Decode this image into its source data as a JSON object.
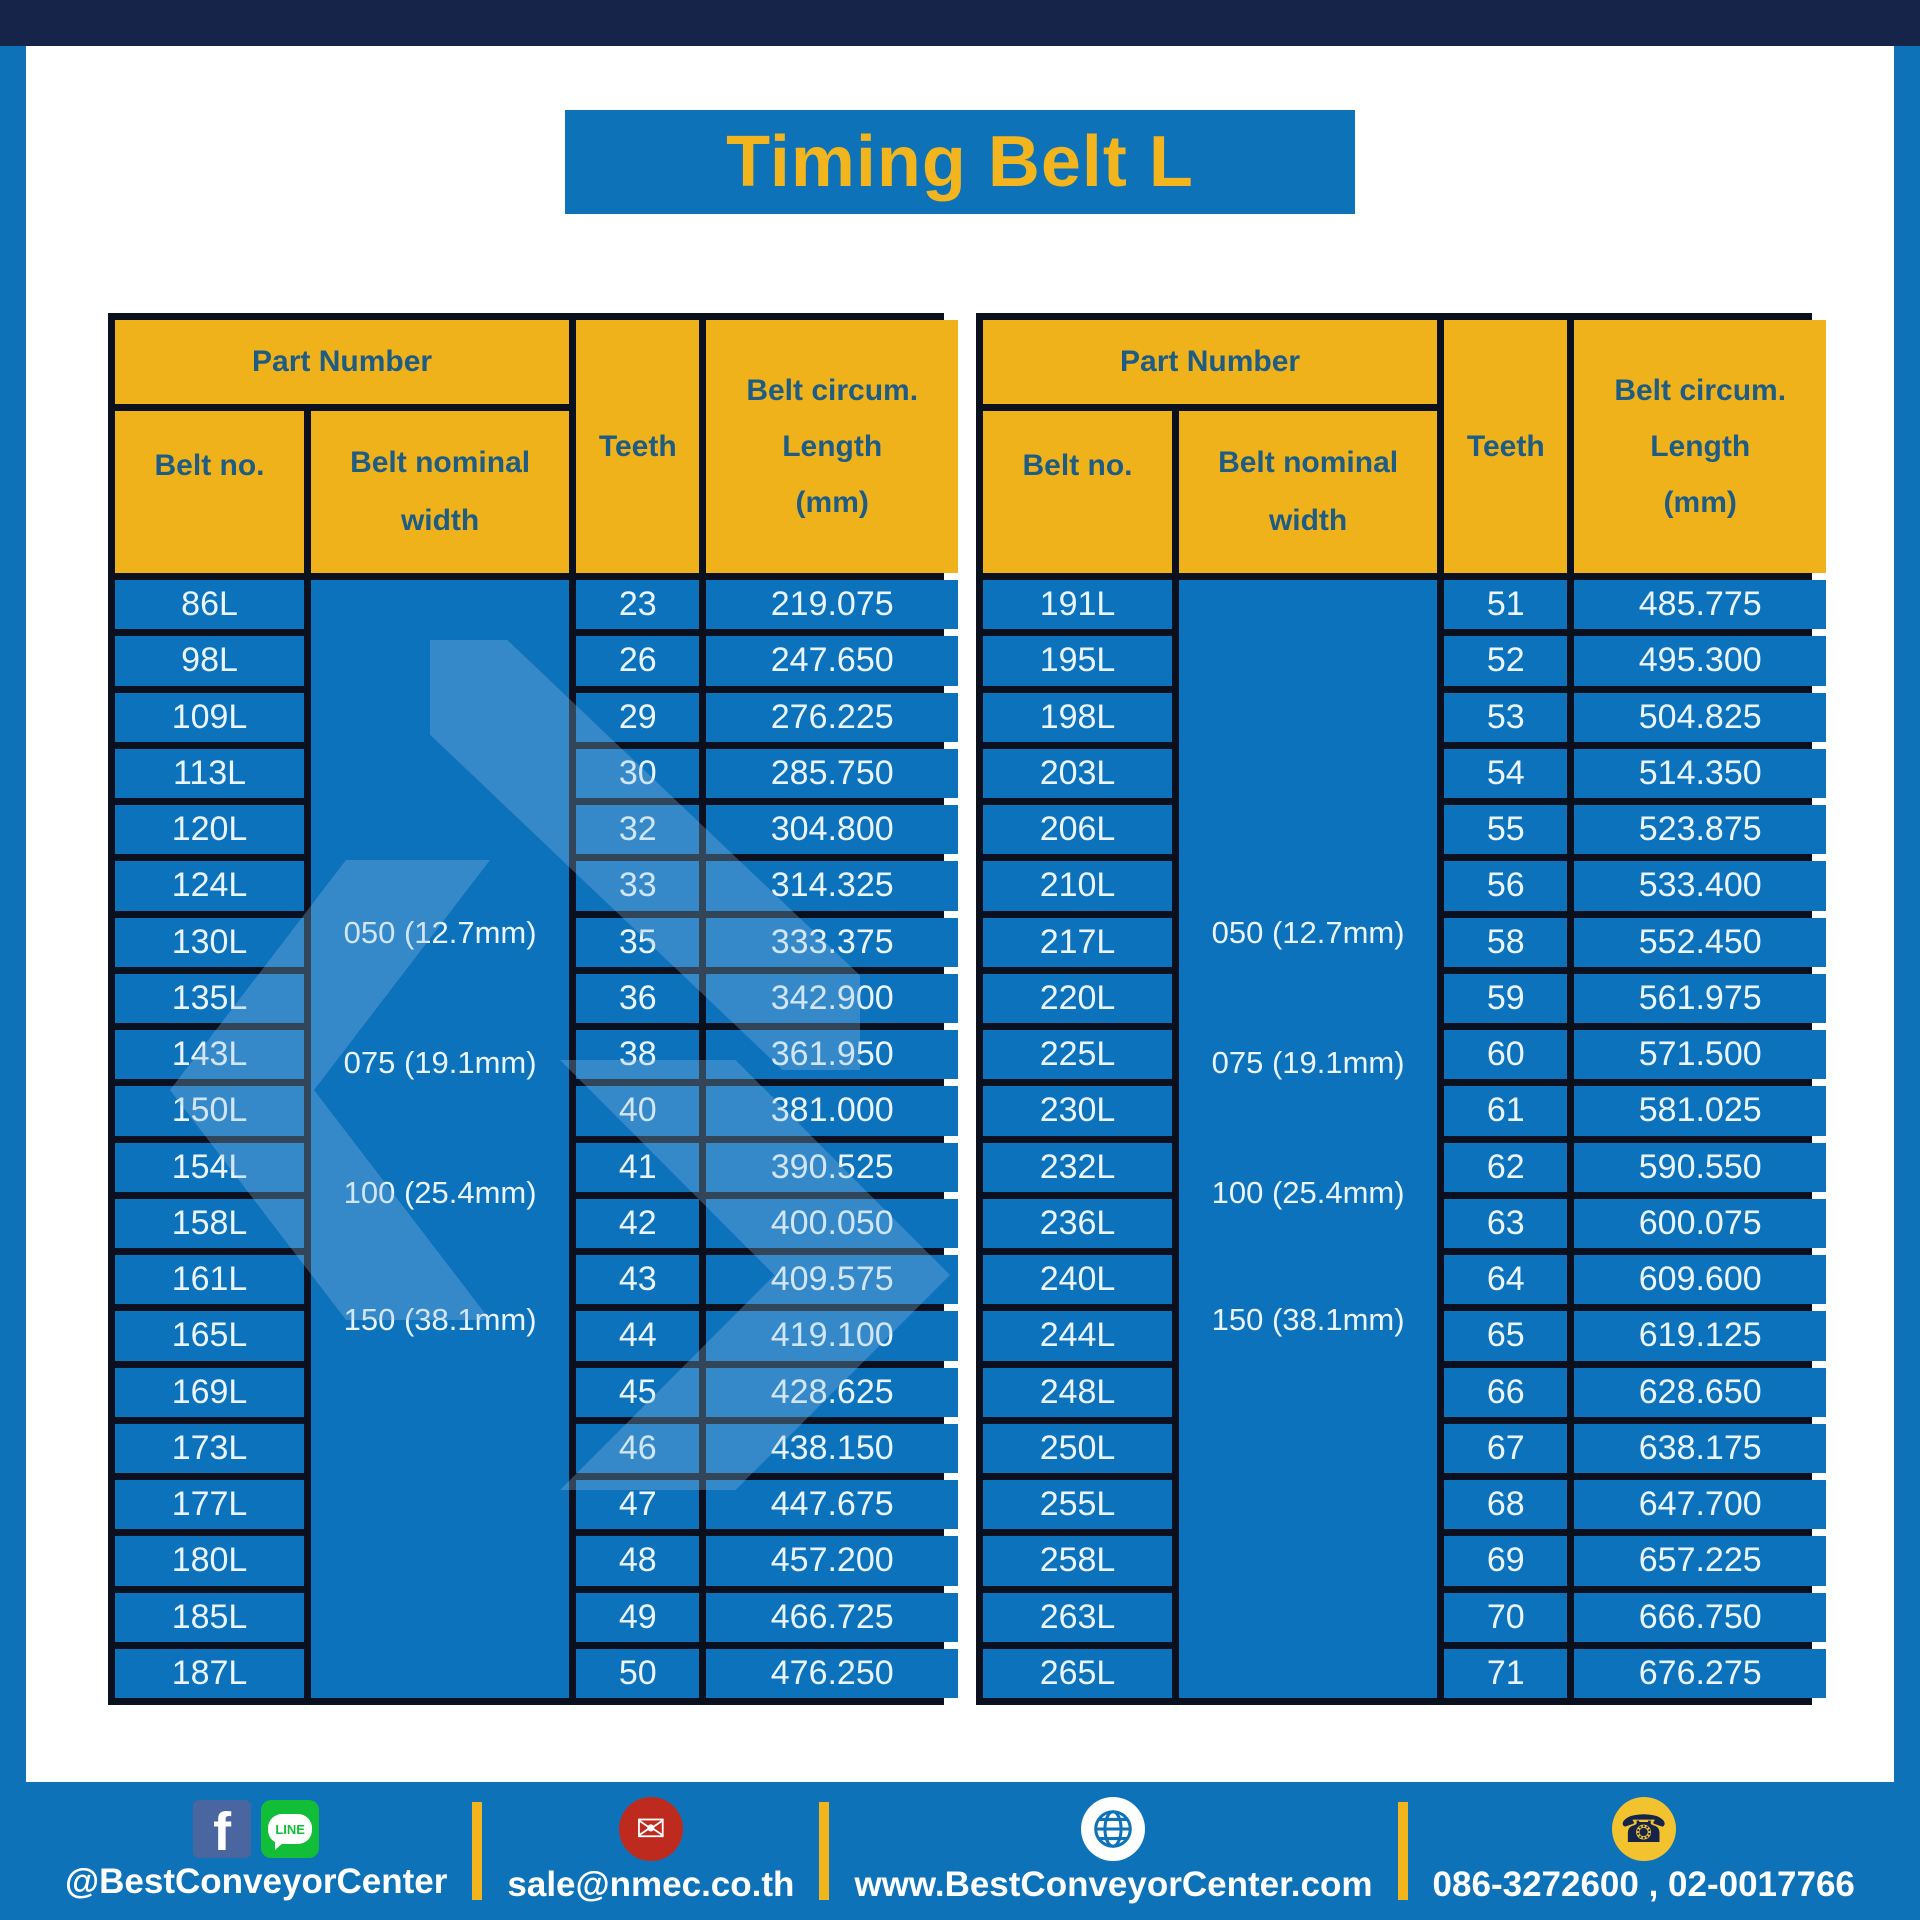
{
  "title": "Timing Belt L",
  "table_header": {
    "part_number": "Part Number",
    "belt_no": "Belt no.",
    "belt_nominal_line1": "Belt nominal",
    "belt_nominal_line2": "width",
    "teeth": "Teeth",
    "belt_circum_line1": "Belt circum.",
    "belt_circum_line2": "Length",
    "belt_circum_line3": "(mm)"
  },
  "tables": [
    {
      "widths": [
        "050 (12.7mm)",
        "075 (19.1mm)",
        "100 (25.4mm)",
        "150 (38.1mm)"
      ],
      "rows": [
        {
          "belt": "86L",
          "teeth": 23,
          "length": "219.075"
        },
        {
          "belt": "98L",
          "teeth": 26,
          "length": "247.650"
        },
        {
          "belt": "109L",
          "teeth": 29,
          "length": "276.225"
        },
        {
          "belt": "113L",
          "teeth": 30,
          "length": "285.750"
        },
        {
          "belt": "120L",
          "teeth": 32,
          "length": "304.800"
        },
        {
          "belt": "124L",
          "teeth": 33,
          "length": "314.325"
        },
        {
          "belt": "130L",
          "teeth": 35,
          "length": "333.375"
        },
        {
          "belt": "135L",
          "teeth": 36,
          "length": "342.900"
        },
        {
          "belt": "143L",
          "teeth": 38,
          "length": "361.950"
        },
        {
          "belt": "150L",
          "teeth": 40,
          "length": "381.000"
        },
        {
          "belt": "154L",
          "teeth": 41,
          "length": "390.525"
        },
        {
          "belt": "158L",
          "teeth": 42,
          "length": "400.050"
        },
        {
          "belt": "161L",
          "teeth": 43,
          "length": "409.575"
        },
        {
          "belt": "165L",
          "teeth": 44,
          "length": "419.100"
        },
        {
          "belt": "169L",
          "teeth": 45,
          "length": "428.625"
        },
        {
          "belt": "173L",
          "teeth": 46,
          "length": "438.150"
        },
        {
          "belt": "177L",
          "teeth": 47,
          "length": "447.675"
        },
        {
          "belt": "180L",
          "teeth": 48,
          "length": "457.200"
        },
        {
          "belt": "185L",
          "teeth": 49,
          "length": "466.725"
        },
        {
          "belt": "187L",
          "teeth": 50,
          "length": "476.250"
        }
      ]
    },
    {
      "widths": [
        "050 (12.7mm)",
        "075 (19.1mm)",
        "100 (25.4mm)",
        "150 (38.1mm)"
      ],
      "rows": [
        {
          "belt": "191L",
          "teeth": 51,
          "length": "485.775"
        },
        {
          "belt": "195L",
          "teeth": 52,
          "length": "495.300"
        },
        {
          "belt": "198L",
          "teeth": 53,
          "length": "504.825"
        },
        {
          "belt": "203L",
          "teeth": 54,
          "length": "514.350"
        },
        {
          "belt": "206L",
          "teeth": 55,
          "length": "523.875"
        },
        {
          "belt": "210L",
          "teeth": 56,
          "length": "533.400"
        },
        {
          "belt": "217L",
          "teeth": 58,
          "length": "552.450"
        },
        {
          "belt": "220L",
          "teeth": 59,
          "length": "561.975"
        },
        {
          "belt": "225L",
          "teeth": 60,
          "length": "571.500"
        },
        {
          "belt": "230L",
          "teeth": 61,
          "length": "581.025"
        },
        {
          "belt": "232L",
          "teeth": 62,
          "length": "590.550"
        },
        {
          "belt": "236L",
          "teeth": 63,
          "length": "600.075"
        },
        {
          "belt": "240L",
          "teeth": 64,
          "length": "609.600"
        },
        {
          "belt": "244L",
          "teeth": 65,
          "length": "619.125"
        },
        {
          "belt": "248L",
          "teeth": 66,
          "length": "628.650"
        },
        {
          "belt": "250L",
          "teeth": 67,
          "length": "638.175"
        },
        {
          "belt": "255L",
          "teeth": 68,
          "length": "647.700"
        },
        {
          "belt": "258L",
          "teeth": 69,
          "length": "657.225"
        },
        {
          "belt": "263L",
          "teeth": 70,
          "length": "666.750"
        },
        {
          "belt": "265L",
          "teeth": 71,
          "length": "676.275"
        }
      ]
    }
  ],
  "footer": {
    "line_label": "LINE",
    "facebook_handle": "@BestConveyorCenter",
    "email": "sale@nmec.co.th",
    "website": "www.BestConveyorCenter.com",
    "phone": "086-3272600 , 02-0017766"
  },
  "colors": {
    "main_blue": "#0E72B9",
    "cell_blue": "#0D72BC",
    "header_yellow": "#F0B21B",
    "accent_yellow": "#F2B51D",
    "navy": "#16244A",
    "border_dark": "#0A101E",
    "header_text_blue": "#1E5C84",
    "mail_red": "#BE2A1E",
    "line_green": "#12BE38",
    "facebook_blue": "#4A66A0"
  }
}
